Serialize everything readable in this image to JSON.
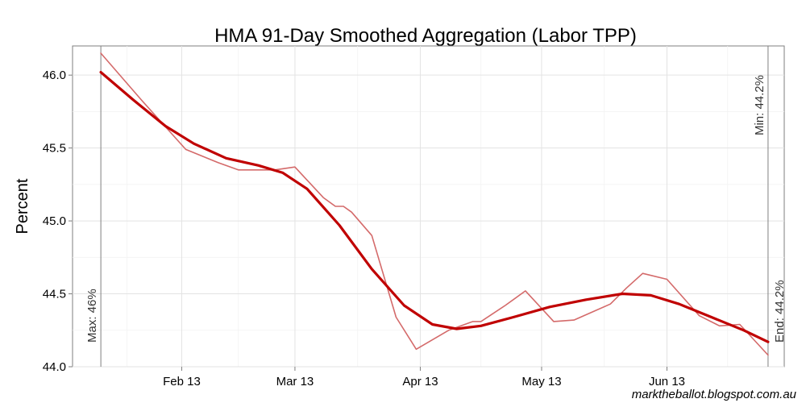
{
  "chart_data": {
    "type": "line",
    "title": "HMA 91-Day Smoothed Aggregation (Labor TPP)",
    "xlabel": "",
    "ylabel": "Percent",
    "ylim": [
      44.0,
      46.2
    ],
    "xlim": [
      "2013-01-05",
      "2013-06-30"
    ],
    "y_ticks": [
      44.0,
      44.5,
      45.0,
      45.5,
      46.0
    ],
    "y_tick_labels": [
      "44.0",
      "44.5",
      "45.0",
      "45.5",
      "46.0"
    ],
    "x_ticks": [
      "2013-02-01",
      "2013-03-01",
      "2013-04-01",
      "2013-05-01",
      "2013-06-01"
    ],
    "x_tick_labels": [
      "Feb 13",
      "Mar 13",
      "Apr 13",
      "May 13",
      "Jun 13"
    ],
    "grid": true,
    "series": [
      {
        "style": "raw",
        "color": "#d46a6a",
        "x": [
          "2013-01-12",
          "2013-01-22",
          "2013-02-02",
          "2013-02-10",
          "2013-02-15",
          "2013-02-24",
          "2013-03-01",
          "2013-03-08",
          "2013-03-11",
          "2013-03-13",
          "2013-03-15",
          "2013-03-20",
          "2013-03-26",
          "2013-03-31",
          "2013-04-08",
          "2013-04-14",
          "2013-04-16",
          "2013-04-22",
          "2013-04-27",
          "2013-05-04",
          "2013-05-09",
          "2013-05-18",
          "2013-05-22",
          "2013-05-26",
          "2013-06-01",
          "2013-06-09",
          "2013-06-14",
          "2013-06-19",
          "2013-06-26"
        ],
        "y": [
          46.15,
          45.83,
          45.49,
          45.4,
          45.35,
          45.35,
          45.37,
          45.16,
          45.1,
          45.1,
          45.06,
          44.9,
          44.34,
          44.12,
          44.25,
          44.31,
          44.31,
          44.42,
          44.52,
          44.31,
          44.32,
          44.43,
          44.54,
          44.64,
          44.6,
          44.35,
          44.28,
          44.29,
          44.08
        ]
      },
      {
        "style": "smoothed",
        "color": "#c00000",
        "x": [
          "2013-01-12",
          "2013-01-20",
          "2013-01-28",
          "2013-02-04",
          "2013-02-12",
          "2013-02-20",
          "2013-02-26",
          "2013-03-04",
          "2013-03-12",
          "2013-03-20",
          "2013-03-28",
          "2013-04-04",
          "2013-04-10",
          "2013-04-16",
          "2013-04-24",
          "2013-05-03",
          "2013-05-12",
          "2013-05-21",
          "2013-05-28",
          "2013-06-04",
          "2013-06-12",
          "2013-06-20",
          "2013-06-26"
        ],
        "y": [
          46.02,
          45.83,
          45.65,
          45.53,
          45.43,
          45.38,
          45.33,
          45.22,
          44.97,
          44.67,
          44.42,
          44.29,
          44.26,
          44.28,
          44.34,
          44.41,
          44.46,
          44.5,
          44.49,
          44.43,
          44.34,
          44.25,
          44.17
        ]
      }
    ],
    "annotations": [
      {
        "date": "2013-01-12",
        "label": "Max: 46%",
        "position": "bottom"
      },
      {
        "date": "2013-06-26",
        "label": "Min: 44.2%",
        "position": "top"
      },
      {
        "date": "2013-06-26",
        "label": "End: 44.2%",
        "position": "bottom-right"
      }
    ],
    "caption": "marktheballot.blogspot.com.au"
  }
}
